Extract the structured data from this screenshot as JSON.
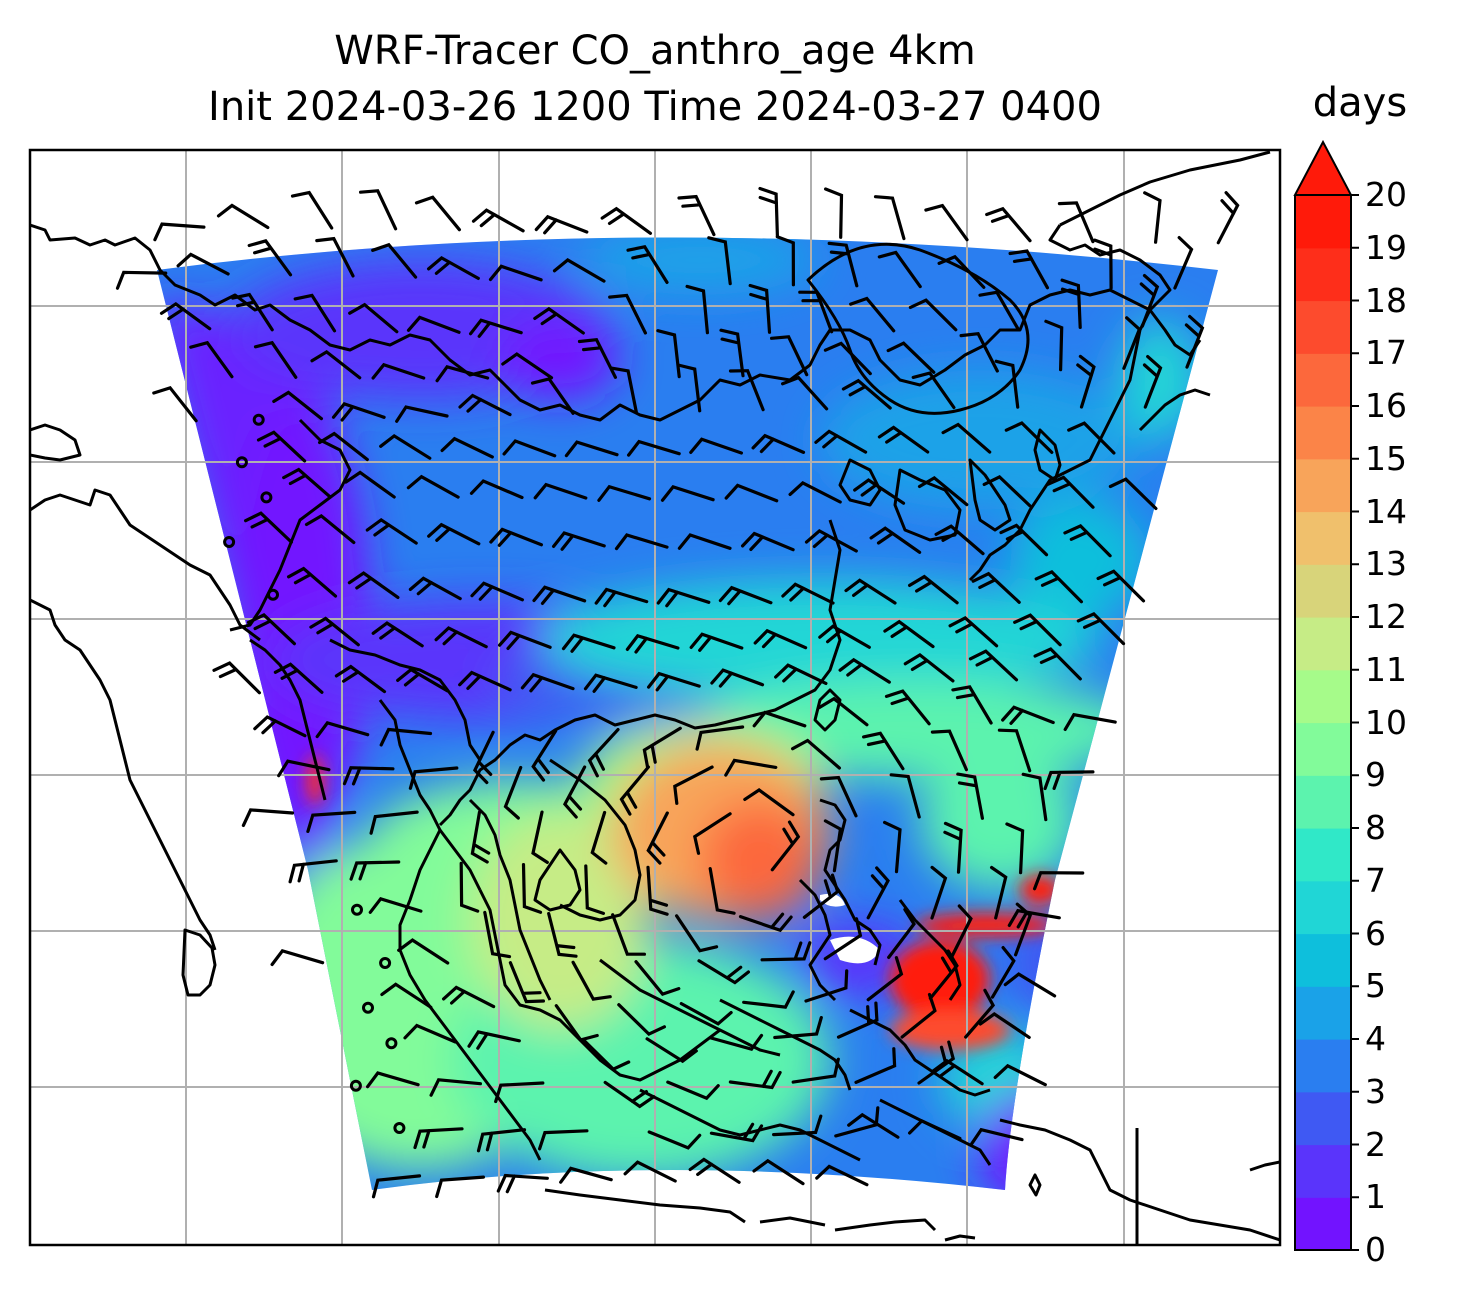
{
  "title": {
    "line1": "WRF-Tracer CO_anthro_age 4km",
    "line2": "Init 2024-03-26 1200 Time 2024-03-27 0400"
  },
  "colorbar": {
    "units": "days",
    "ticks": [
      "0",
      "1",
      "2",
      "3",
      "4",
      "5",
      "6",
      "7",
      "8",
      "9",
      "10",
      "11",
      "12",
      "13",
      "14",
      "15",
      "16",
      "17",
      "18",
      "19",
      "20"
    ],
    "extend": "max",
    "colors": [
      "#7213ff",
      "#5a34fb",
      "#3f59f3",
      "#2a7ef0",
      "#1aa2e8",
      "#0ebfdc",
      "#20d6d6",
      "#30e8c8",
      "#5cf3ae",
      "#82fb9a",
      "#a6fb8a",
      "#c6ec86",
      "#d8d47a",
      "#f0c06c",
      "#f8a45a",
      "#fb8448",
      "#fc683c",
      "#fd4b2d",
      "#fe2e1a",
      "#ff1a0a"
    ]
  },
  "map": {
    "gridlines": "on",
    "coastlines": "on",
    "field": "CO_anthro_age",
    "wind_barbs": "on"
  }
}
